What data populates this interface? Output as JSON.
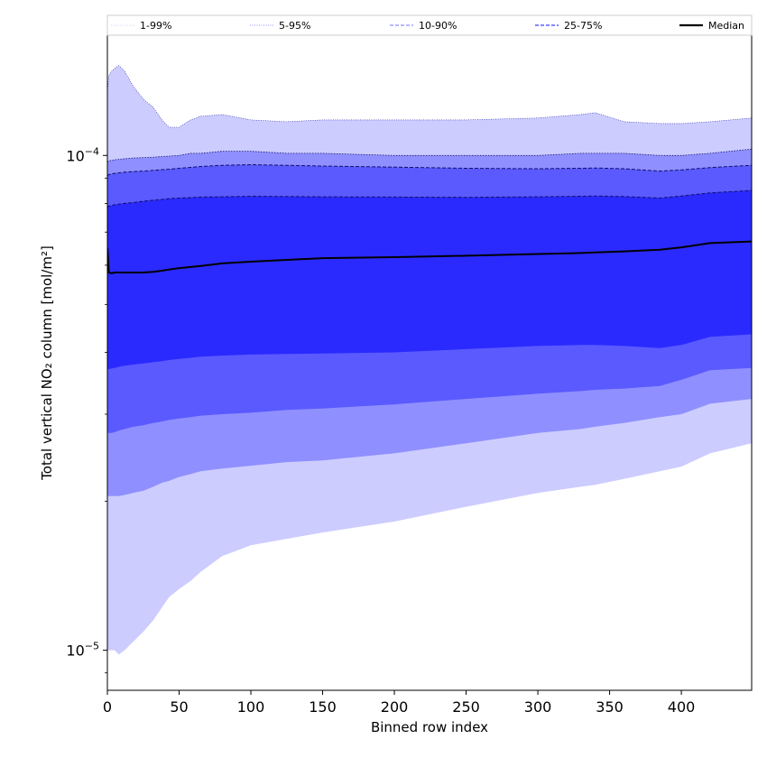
{
  "chart_data": {
    "type": "area",
    "xlabel": "Binned row index",
    "ylabel": "Total vertical NO₂ column [mol/m²]",
    "xlim": [
      0,
      449
    ],
    "ylim": [
      8.3e-06,
      0.000175
    ],
    "yscale": "log",
    "x_ticks": [
      0,
      50,
      100,
      150,
      200,
      250,
      300,
      350,
      400
    ],
    "x_tick_labels": [
      "0",
      "50",
      "100",
      "150",
      "200",
      "250",
      "300",
      "350",
      "400"
    ],
    "y_ticks": [
      1e-05,
      0.0001
    ],
    "y_tick_labels": [
      {
        "base": "10",
        "exp": "−5"
      },
      {
        "base": "10",
        "exp": "−4"
      }
    ],
    "legend_position": "top",
    "legend": [
      {
        "label": "1-99%",
        "style": "dotted",
        "color": "#d0d0ff"
      },
      {
        "label": "5-95%",
        "style": "dotted",
        "color": "#8f8fff"
      },
      {
        "label": "10-90%",
        "style": "dashed",
        "color": "#8f8fff"
      },
      {
        "label": "25-75%",
        "style": "dashed",
        "color": "#3d3dff"
      },
      {
        "label": "Median",
        "style": "solid",
        "color": "#000000"
      }
    ],
    "x": [
      0,
      1,
      3,
      5,
      8,
      12,
      18,
      25,
      32,
      38,
      43,
      50,
      58,
      65,
      80,
      100,
      125,
      150,
      200,
      250,
      300,
      330,
      340,
      360,
      385,
      400,
      420,
      449
    ],
    "series": [
      {
        "name": "1-99%",
        "color": "#ccccff",
        "lower": [
          1e-05,
          1e-05,
          1e-05,
          1e-05,
          9.8e-06,
          1e-05,
          1.04e-05,
          1.09e-05,
          1.15e-05,
          1.22e-05,
          1.28e-05,
          1.33e-05,
          1.38e-05,
          1.44e-05,
          1.55e-05,
          1.63e-05,
          1.68e-05,
          1.73e-05,
          1.82e-05,
          1.95e-05,
          2.08e-05,
          2.14e-05,
          2.16e-05,
          2.22e-05,
          2.3e-05,
          2.35e-05,
          2.5e-05,
          2.62e-05
        ],
        "upper": [
          0.000135,
          0.000145,
          0.000148,
          0.00015,
          0.000152,
          0.000148,
          0.000138,
          0.00013,
          0.000125,
          0.000118,
          0.000114,
          0.000114,
          0.000118,
          0.00012,
          0.000121,
          0.000118,
          0.000117,
          0.000118,
          0.000118,
          0.000118,
          0.000119,
          0.000121,
          0.000122,
          0.000117,
          0.000116,
          0.000116,
          0.000117,
          0.000119
        ]
      },
      {
        "name": "5-95%",
        "color": "#8f8fff",
        "lower": [
          2.05e-05,
          2.05e-05,
          2.05e-05,
          2.05e-05,
          2.05e-05,
          2.06e-05,
          2.08e-05,
          2.1e-05,
          2.14e-05,
          2.18e-05,
          2.2e-05,
          2.24e-05,
          2.27e-05,
          2.3e-05,
          2.33e-05,
          2.36e-05,
          2.4e-05,
          2.42e-05,
          2.5e-05,
          2.62e-05,
          2.75e-05,
          2.8e-05,
          2.83e-05,
          2.88e-05,
          2.96e-05,
          3e-05,
          3.15e-05,
          3.22e-05
        ],
        "upper": [
          9.7e-05,
          9.75e-05,
          9.78e-05,
          9.8e-05,
          9.82e-05,
          9.85e-05,
          9.88e-05,
          9.9e-05,
          9.92e-05,
          9.95e-05,
          9.97e-05,
          0.0001,
          0.000101,
          0.000101,
          0.000102,
          0.000102,
          0.000101,
          0.000101,
          0.0001,
          0.0001,
          0.0001,
          0.000101,
          0.000101,
          0.000101,
          0.0001,
          0.0001,
          0.000101,
          0.000103
        ]
      },
      {
        "name": "10-90%",
        "color": "#5a5aff",
        "lower": [
          2.75e-05,
          2.75e-05,
          2.75e-05,
          2.76e-05,
          2.78e-05,
          2.8e-05,
          2.83e-05,
          2.85e-05,
          2.88e-05,
          2.9e-05,
          2.92e-05,
          2.94e-05,
          2.96e-05,
          2.98e-05,
          3e-05,
          3.02e-05,
          3.06e-05,
          3.08e-05,
          3.14e-05,
          3.22e-05,
          3.3e-05,
          3.34e-05,
          3.36e-05,
          3.38e-05,
          3.42e-05,
          3.52e-05,
          3.68e-05,
          3.72e-05
        ],
        "upper": [
          9.1e-05,
          9.15e-05,
          9.18e-05,
          9.2e-05,
          9.22e-05,
          9.25e-05,
          9.28e-05,
          9.3e-05,
          9.33e-05,
          9.36e-05,
          9.38e-05,
          9.42e-05,
          9.46e-05,
          9.5e-05,
          9.55e-05,
          9.58e-05,
          9.55e-05,
          9.52e-05,
          9.47e-05,
          9.42e-05,
          9.4e-05,
          9.42e-05,
          9.43e-05,
          9.4e-05,
          9.3e-05,
          9.35e-05,
          9.45e-05,
          9.55e-05
        ]
      },
      {
        "name": "25-75%",
        "color": "#2a2aff",
        "lower": [
          3.7e-05,
          3.7e-05,
          3.71e-05,
          3.72e-05,
          3.74e-05,
          3.76e-05,
          3.78e-05,
          3.8e-05,
          3.82e-05,
          3.84e-05,
          3.86e-05,
          3.88e-05,
          3.9e-05,
          3.92e-05,
          3.94e-05,
          3.96e-05,
          3.97e-05,
          3.98e-05,
          4e-05,
          4.06e-05,
          4.12e-05,
          4.14e-05,
          4.14e-05,
          4.12e-05,
          4.08e-05,
          4.14e-05,
          4.3e-05,
          4.35e-05
        ],
        "upper": [
          7.85e-05,
          7.9e-05,
          7.92e-05,
          7.95e-05,
          7.97e-05,
          8e-05,
          8.03e-05,
          8.08e-05,
          8.12e-05,
          8.15e-05,
          8.18e-05,
          8.2e-05,
          8.22e-05,
          8.24e-05,
          8.25e-05,
          8.27e-05,
          8.26e-05,
          8.25e-05,
          8.24e-05,
          8.23e-05,
          8.25e-05,
          8.27e-05,
          8.28e-05,
          8.26e-05,
          8.2e-05,
          8.28e-05,
          8.4e-05,
          8.5e-05
        ]
      },
      {
        "name": "Median",
        "color": "#000000",
        "values": [
          6.5e-05,
          5.8e-05,
          5.78e-05,
          5.8e-05,
          5.8e-05,
          5.8e-05,
          5.8e-05,
          5.8e-05,
          5.82e-05,
          5.85e-05,
          5.88e-05,
          5.92e-05,
          5.95e-05,
          5.98e-05,
          6.05e-05,
          6.1e-05,
          6.15e-05,
          6.2e-05,
          6.23e-05,
          6.27e-05,
          6.32e-05,
          6.35e-05,
          6.37e-05,
          6.4e-05,
          6.45e-05,
          6.52e-05,
          6.65e-05,
          6.7e-05
        ]
      }
    ]
  }
}
